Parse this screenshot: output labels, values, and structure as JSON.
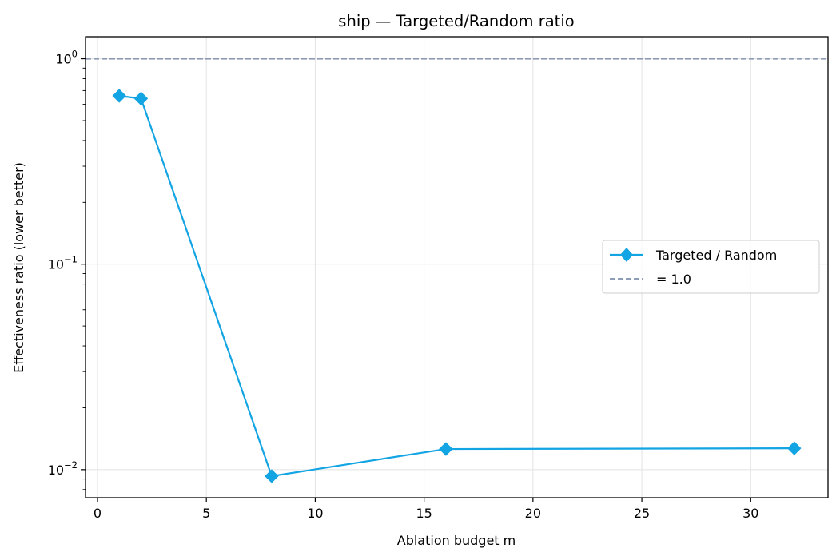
{
  "chart_data": {
    "type": "line",
    "title": "ship — Targeted/Random ratio",
    "xlabel": "Ablation budget m",
    "ylabel": "Effectiveness ratio (lower better)",
    "xlim": [
      -0.55,
      33.55
    ],
    "ylim": [
      0.0073,
      1.28
    ],
    "yscale": "log",
    "grid": true,
    "legend_position": "center-right",
    "x_ticks": [
      0,
      5,
      10,
      15,
      20,
      25,
      30
    ],
    "y_ticks": [
      {
        "value": 0.01,
        "base": "10",
        "exp": "−2"
      },
      {
        "value": 0.1,
        "base": "10",
        "exp": "−1"
      },
      {
        "value": 1,
        "base": "10",
        "exp": "0"
      }
    ],
    "series": [
      {
        "name": "Targeted / Random",
        "color": "#12a4e3",
        "marker": "diamond",
        "x": [
          1,
          2,
          8,
          16,
          32
        ],
        "y": [
          0.66,
          0.64,
          0.0093,
          0.0126,
          0.0127
        ]
      }
    ],
    "reference_lines": [
      {
        "name": "= 1.0",
        "y": 1.0,
        "color": "#8d9db6",
        "style": "dashed"
      }
    ]
  }
}
